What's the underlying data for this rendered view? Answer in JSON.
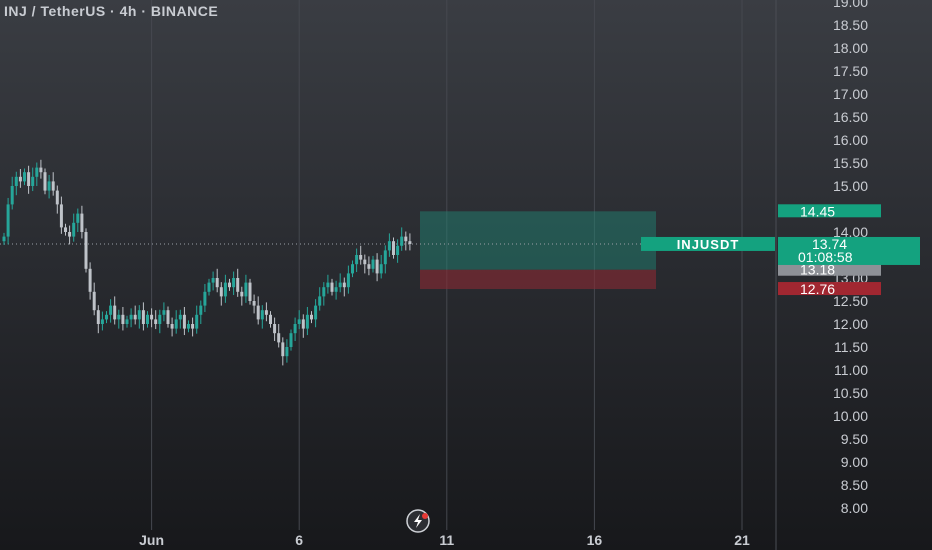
{
  "header": {
    "title": "INJ / TetherUS · 4h · BINANCE"
  },
  "colors": {
    "up": "#26a69a",
    "down": "#bfc3c9",
    "profit_zone": "#1f8a78",
    "loss_zone": "#8b2a33",
    "price_label": "#14a27f",
    "stop_label": "#a12731",
    "entry_label": "#8e9197"
  },
  "chart_data": {
    "type": "candlestick",
    "symbol": "INJUSDT",
    "interval": "4h",
    "exchange": "BINANCE",
    "y_ticks": [
      "19.00",
      "18.50",
      "18.00",
      "17.50",
      "17.00",
      "16.50",
      "16.00",
      "15.50",
      "15.00",
      "14.00",
      "13.00",
      "12.50",
      "12.00",
      "11.50",
      "11.00",
      "10.50",
      "10.00",
      "9.50",
      "9.00",
      "8.50",
      "8.00"
    ],
    "x_ticks": [
      {
        "label": "Jun",
        "bar": 36
      },
      {
        "label": "6",
        "bar": 72
      },
      {
        "label": "11",
        "bar": 108
      },
      {
        "label": "16",
        "bar": 144
      },
      {
        "label": "21",
        "bar": 180
      }
    ],
    "closes": [
      13.9,
      14.6,
      15.0,
      15.2,
      15.1,
      15.3,
      15.0,
      15.2,
      15.4,
      15.3,
      14.9,
      15.1,
      14.9,
      14.6,
      14.1,
      14.0,
      13.9,
      14.2,
      14.4,
      14.0,
      13.2,
      12.7,
      12.3,
      12.0,
      12.1,
      12.2,
      12.4,
      12.1,
      12.2,
      12.0,
      12.1,
      12.2,
      12.1,
      12.3,
      12.0,
      12.2,
      12.1,
      12.0,
      12.2,
      12.3,
      12.0,
      11.9,
      12.1,
      12.2,
      11.9,
      12.0,
      11.9,
      12.2,
      12.4,
      12.7,
      12.9,
      13.0,
      12.8,
      12.6,
      12.9,
      12.8,
      13.0,
      12.7,
      12.6,
      12.9,
      12.5,
      12.4,
      12.1,
      12.3,
      12.2,
      12.0,
      11.8,
      11.6,
      11.3,
      11.5,
      11.8,
      12.0,
      12.1,
      11.9,
      12.2,
      12.1,
      12.4,
      12.6,
      12.8,
      12.9,
      12.7,
      12.8,
      12.9,
      12.8,
      13.1,
      13.3,
      13.5,
      13.4,
      13.3,
      13.2,
      13.4,
      13.1,
      13.3,
      13.6,
      13.8,
      13.5,
      13.7,
      13.9,
      13.8,
      13.74
    ],
    "positions": {
      "take_profit": 14.45,
      "entry": 13.18,
      "stop_loss": 12.76
    },
    "last_price": {
      "symbol_label": "INJUSDT",
      "price": "13.74",
      "countdown": "01:08:58"
    },
    "labels": {
      "take_profit": "14.45",
      "entry": "13.18",
      "stop_loss": "12.76"
    },
    "grid": true
  }
}
